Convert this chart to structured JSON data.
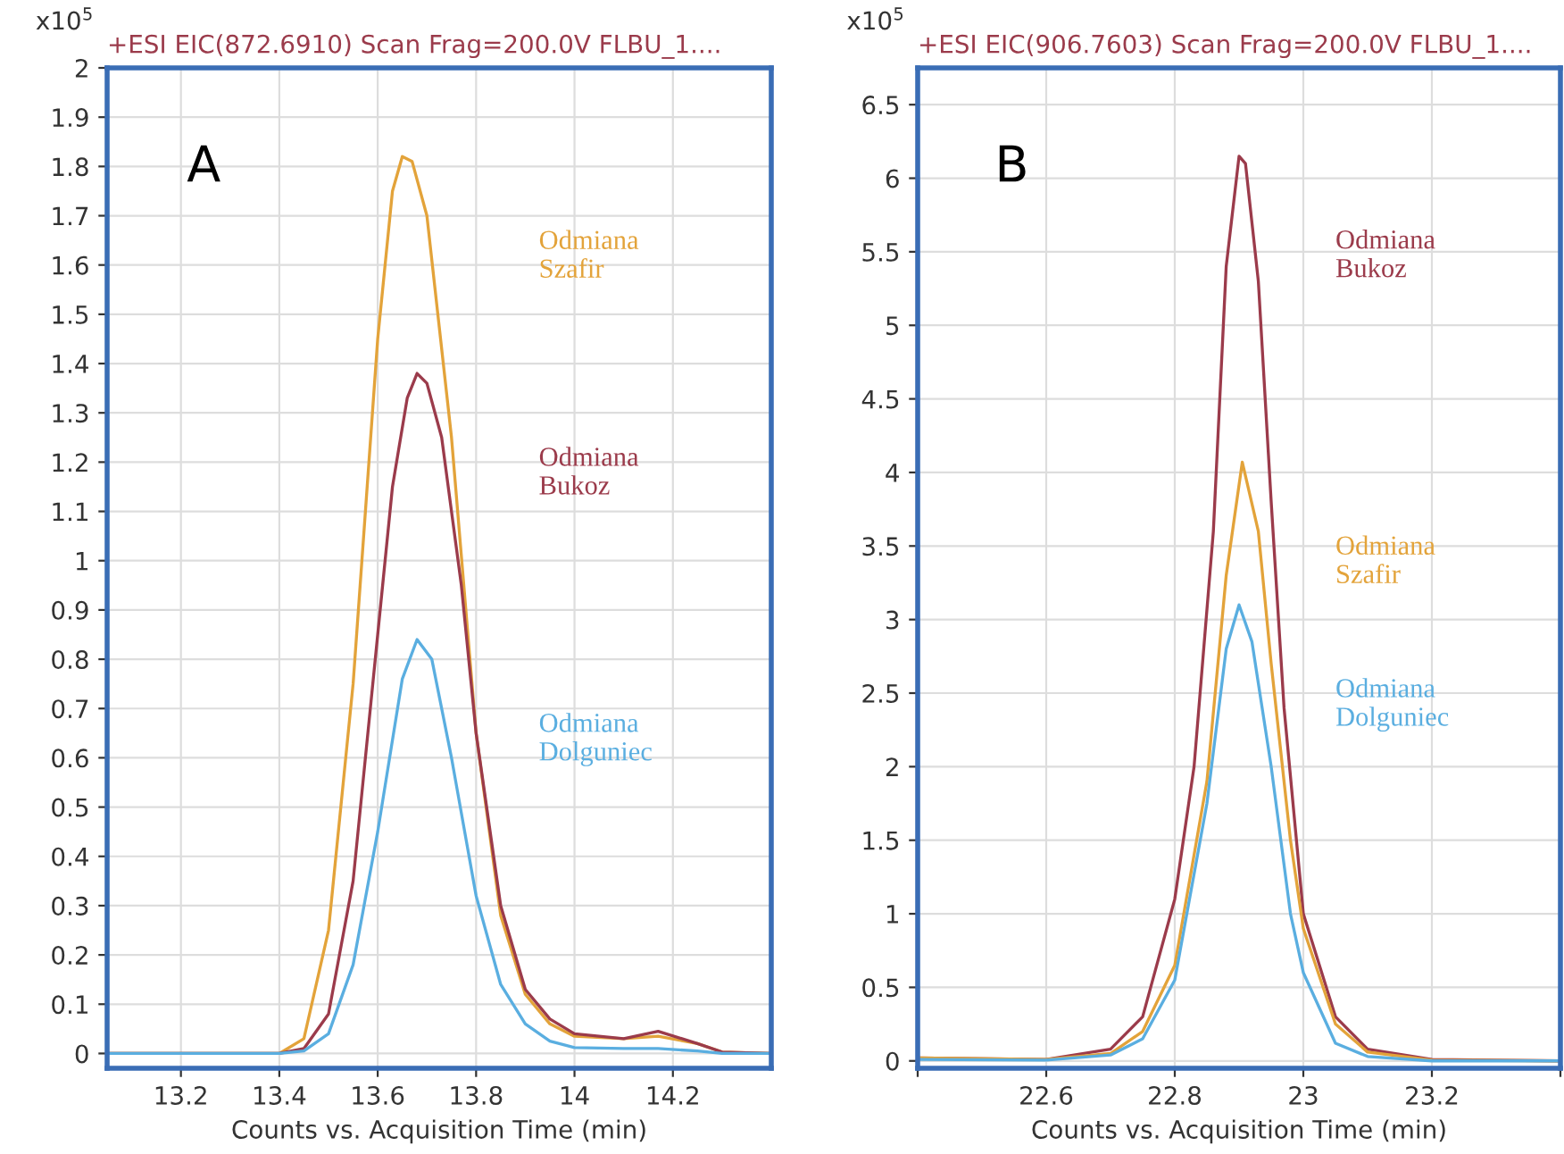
{
  "chart_data": [
    {
      "type": "line",
      "title": "+ESI EIC(872.6910) Scan Frag=200.0V FLBU_1....",
      "xlabel": "Counts vs. Acquisition Time (min)",
      "ylabel": "x10$^{5}$",
      "annotations": [
        "A"
      ],
      "grid": true,
      "legend": false,
      "xlim": [
        13.05,
        14.4
      ],
      "xticks": [
        13.2,
        13.4,
        13.6,
        13.8,
        14,
        14.2
      ],
      "ylim": [
        -0.03,
        2.0
      ],
      "yticks": [
        0,
        0.1,
        0.2,
        0.3,
        0.4,
        0.5,
        0.6,
        0.7,
        0.8,
        0.9,
        1,
        1.1,
        1.2,
        1.3,
        1.4,
        1.5,
        1.6,
        1.7,
        1.8,
        1.9,
        2
      ],
      "series": [
        {
          "name": "Odmiana\nSzafir",
          "color": "#e3a33a",
          "x": [
            13.05,
            13.4,
            13.45,
            13.5,
            13.55,
            13.6,
            13.63,
            13.65,
            13.67,
            13.7,
            13.75,
            13.8,
            13.85,
            13.9,
            13.95,
            14.0,
            14.1,
            14.17,
            14.25,
            14.3,
            14.4
          ],
          "values": [
            0,
            0,
            0.03,
            0.25,
            0.75,
            1.45,
            1.75,
            1.82,
            1.81,
            1.7,
            1.25,
            0.65,
            0.28,
            0.12,
            0.06,
            0.035,
            0.03,
            0.035,
            0.02,
            0.003,
            0
          ]
        },
        {
          "name": "Odmiana\nBukoz",
          "color": "#9b3b4b",
          "x": [
            13.05,
            13.4,
            13.45,
            13.5,
            13.55,
            13.6,
            13.63,
            13.66,
            13.68,
            13.7,
            13.73,
            13.77,
            13.8,
            13.85,
            13.9,
            13.95,
            14.0,
            14.1,
            14.17,
            14.25,
            14.3,
            14.4
          ],
          "values": [
            0,
            0,
            0.01,
            0.08,
            0.35,
            0.85,
            1.15,
            1.33,
            1.38,
            1.36,
            1.25,
            0.95,
            0.65,
            0.3,
            0.13,
            0.07,
            0.04,
            0.03,
            0.045,
            0.02,
            0.003,
            0
          ]
        },
        {
          "name": "Odmiana\nDolguniec",
          "color": "#5aaee0",
          "x": [
            13.05,
            13.4,
            13.45,
            13.5,
            13.55,
            13.6,
            13.65,
            13.68,
            13.71,
            13.75,
            13.8,
            13.85,
            13.9,
            13.95,
            14.0,
            14.1,
            14.17,
            14.25,
            14.3,
            14.4
          ],
          "values": [
            0,
            0,
            0.005,
            0.04,
            0.18,
            0.45,
            0.76,
            0.84,
            0.8,
            0.6,
            0.32,
            0.14,
            0.06,
            0.025,
            0.012,
            0.01,
            0.01,
            0.005,
            0,
            0
          ]
        }
      ]
    },
    {
      "type": "line",
      "title": "+ESI EIC(906.7603) Scan Frag=200.0V FLBU_1....",
      "xlabel": "Counts vs. Acquisition Time (min)",
      "ylabel": "x10$^{5}$",
      "annotations": [
        "B"
      ],
      "grid": true,
      "legend": false,
      "xlim": [
        22.4,
        23.4
      ],
      "xticks": [
        {
          "value": 22.4,
          "label": null
        },
        22.6,
        22.8,
        23,
        23.2,
        {
          "value": 23.4,
          "label": null
        }
      ],
      "ylim": [
        -0.05,
        6.75
      ],
      "yticks": [
        0,
        0.5,
        1,
        1.5,
        2,
        2.5,
        3,
        3.5,
        4,
        4.5,
        5,
        5.5,
        6,
        6.5
      ],
      "series": [
        {
          "name": "Odmiana\nBukoz",
          "color": "#9b3b4b",
          "x": [
            22.4,
            22.6,
            22.7,
            22.75,
            22.8,
            22.83,
            22.86,
            22.88,
            22.9,
            22.91,
            22.93,
            22.95,
            22.97,
            23.0,
            23.05,
            23.1,
            23.2,
            23.4
          ],
          "values": [
            0.02,
            0.01,
            0.08,
            0.3,
            1.1,
            2.0,
            3.6,
            5.4,
            6.15,
            6.1,
            5.3,
            3.8,
            2.4,
            1.0,
            0.3,
            0.08,
            0.01,
            0
          ]
        },
        {
          "name": "Odmiana\nSzafir",
          "color": "#e3a33a",
          "x": [
            22.4,
            22.6,
            22.7,
            22.75,
            22.8,
            22.85,
            22.88,
            22.905,
            22.93,
            22.95,
            22.98,
            23.0,
            23.05,
            23.1,
            23.2,
            23.4
          ],
          "values": [
            0.02,
            0.01,
            0.05,
            0.2,
            0.65,
            1.9,
            3.3,
            4.07,
            3.6,
            2.7,
            1.5,
            0.9,
            0.25,
            0.06,
            0.005,
            0
          ]
        },
        {
          "name": "Odmiana\nDolguniec",
          "color": "#5aaee0",
          "x": [
            22.4,
            22.6,
            22.7,
            22.75,
            22.8,
            22.85,
            22.88,
            22.9,
            22.92,
            22.95,
            22.98,
            23.0,
            23.05,
            23.1,
            23.2,
            23.4
          ],
          "values": [
            0.01,
            0.005,
            0.04,
            0.15,
            0.55,
            1.75,
            2.8,
            3.1,
            2.85,
            2.0,
            1.0,
            0.6,
            0.12,
            0.03,
            0,
            0
          ]
        }
      ]
    }
  ]
}
